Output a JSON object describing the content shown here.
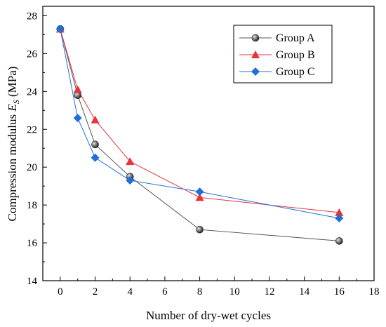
{
  "chart_data": {
    "type": "line",
    "xlabel": "Number of dry-wet cycles",
    "ylabel_prefix": "Compression modulus ",
    "ylabel_symbol": "E",
    "ylabel_subscript": "S",
    "ylabel_suffix": " (MPa)",
    "xlim": [
      -1,
      18
    ],
    "ylim": [
      14,
      28.5
    ],
    "xticks": [
      "0",
      "2",
      "4",
      "6",
      "8",
      "10",
      "12",
      "14",
      "16",
      "18"
    ],
    "yticks": [
      "14",
      "16",
      "18",
      "20",
      "22",
      "24",
      "26",
      "28"
    ],
    "legend_position": "top-right",
    "series": [
      {
        "name": "Group A",
        "color": "#555555",
        "marker": "sphere",
        "x": [
          0,
          1,
          2,
          4,
          8,
          16
        ],
        "values": [
          27.3,
          23.8,
          21.2,
          19.5,
          16.7,
          16.1
        ]
      },
      {
        "name": "Group B",
        "color": "#e8323c",
        "marker": "triangle",
        "x": [
          0,
          1,
          2,
          4,
          8,
          16
        ],
        "values": [
          27.3,
          24.1,
          22.5,
          20.3,
          18.4,
          17.6
        ]
      },
      {
        "name": "Group C",
        "color": "#1f6fd6",
        "marker": "diamond",
        "x": [
          0,
          1,
          2,
          4,
          8,
          16
        ],
        "values": [
          27.3,
          22.6,
          20.5,
          19.3,
          18.7,
          17.3
        ]
      }
    ]
  }
}
